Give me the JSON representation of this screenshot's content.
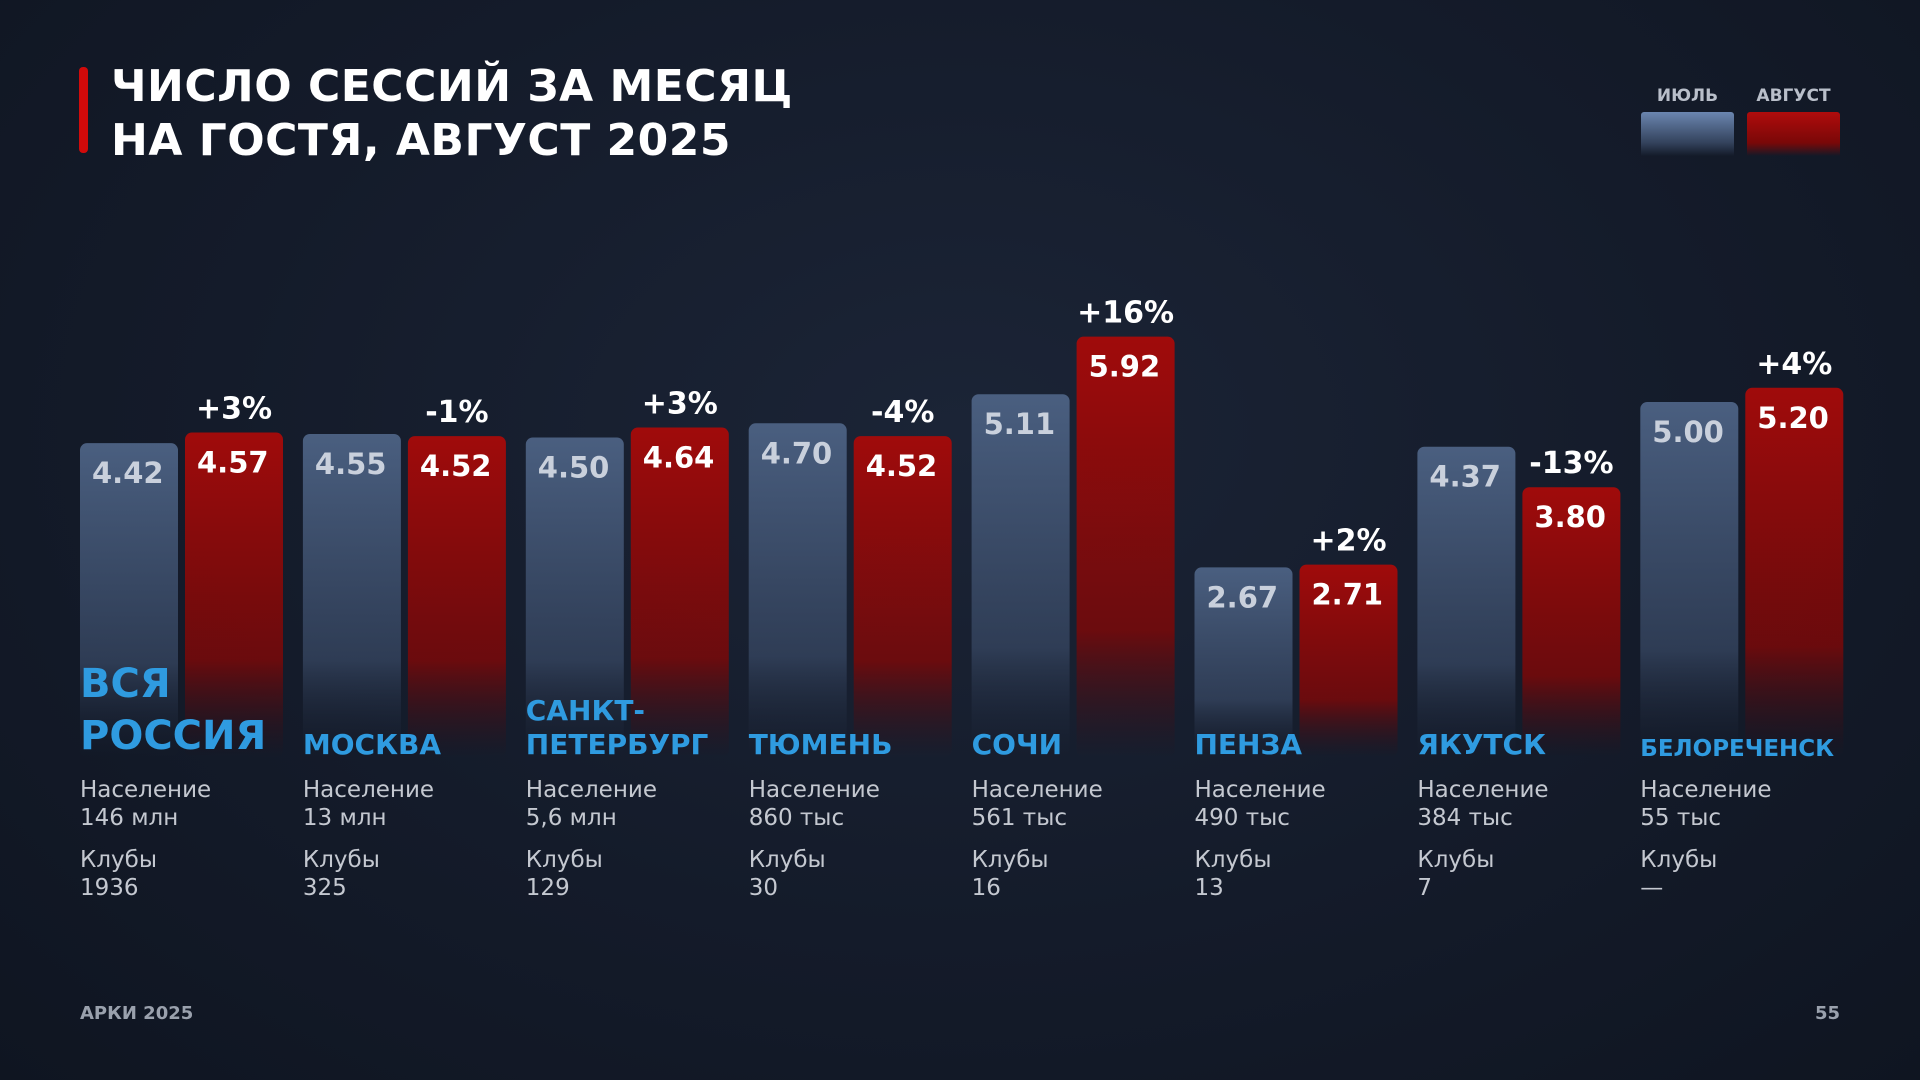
{
  "title_lines": [
    "ЧИСЛО СЕССИЙ ЗА МЕСЯЦ",
    "НА ГОСТЯ, АВГУСТ 2025"
  ],
  "legend": [
    {
      "label": "ИЮЛЬ",
      "color": "#4a5f80"
    },
    {
      "label": "АВГУСТ",
      "color": "#9a0a0a"
    }
  ],
  "colors": {
    "accent": "#d10a0a",
    "city": "#2f9be0"
  },
  "chart_data": {
    "type": "bar",
    "title": "ЧИСЛО СЕССИЙ ЗА МЕСЯЦ НА ГОСТЯ, АВГУСТ 2025",
    "categories": [
      "ВСЯ РОССИЯ",
      "МОСКВА",
      "САНКТ-ПЕТЕРБУРГ",
      "ТЮМЕНЬ",
      "СОЧИ",
      "ПЕНЗА",
      "ЯКУТСК",
      "БЕЛОРЕЧЕНСК"
    ],
    "series": [
      {
        "name": "ИЮЛЬ",
        "values": [
          4.42,
          4.55,
          4.5,
          4.7,
          5.11,
          2.67,
          4.37,
          5.0
        ],
        "labels": [
          "4.42",
          "4.55",
          "4.50",
          "4.70",
          "5.11",
          "2.67",
          "4.37",
          "5.00"
        ]
      },
      {
        "name": "АВГУСТ",
        "values": [
          4.57,
          4.52,
          4.64,
          4.52,
          5.92,
          2.71,
          3.8,
          5.2
        ],
        "labels": [
          "4.57",
          "4.52",
          "4.64",
          "4.52",
          "5.92",
          "2.71",
          "3.80",
          "5.20"
        ]
      }
    ],
    "change_labels": [
      "+3%",
      "-1%",
      "+3%",
      "-4%",
      "+16%",
      "+2%",
      "-13%",
      "+4%"
    ],
    "ylim": [
      0,
      6.5
    ],
    "grid": false,
    "legend_position": "top-right"
  },
  "cities": [
    {
      "name_lines": [
        "ВСЯ",
        "РОССИЯ"
      ],
      "population_label": "Население",
      "population": "146 млн",
      "clubs_label": "Клубы",
      "clubs": "1936"
    },
    {
      "name_lines": [
        "МОСКВА"
      ],
      "population_label": "Население",
      "population": "13 млн",
      "clubs_label": "Клубы",
      "clubs": "325"
    },
    {
      "name_lines": [
        "САНКТ-",
        "ПЕТЕРБУРГ"
      ],
      "population_label": "Население",
      "population": "5,6 млн",
      "clubs_label": "Клубы",
      "clubs": "129"
    },
    {
      "name_lines": [
        "ТЮМЕНЬ"
      ],
      "population_label": "Население",
      "population": "860 тыс",
      "clubs_label": "Клубы",
      "clubs": "30"
    },
    {
      "name_lines": [
        "СОЧИ"
      ],
      "population_label": "Население",
      "population": "561 тыс",
      "clubs_label": "Клубы",
      "clubs": "16"
    },
    {
      "name_lines": [
        "ПЕНЗА"
      ],
      "population_label": "Население",
      "population": "490 тыс",
      "clubs_label": "Клубы",
      "clubs": "13"
    },
    {
      "name_lines": [
        "ЯКУТСК"
      ],
      "population_label": "Население",
      "population": "384 тыс",
      "clubs_label": "Клубы",
      "clubs": "7"
    },
    {
      "name_lines": [
        "БЕЛОРЕЧЕНСК"
      ],
      "population_label": "Население",
      "population": "55 тыс",
      "clubs_label": "Клубы",
      "clubs": "—"
    }
  ],
  "footer": {
    "left": "АРКИ 2025",
    "page_number": "55"
  }
}
